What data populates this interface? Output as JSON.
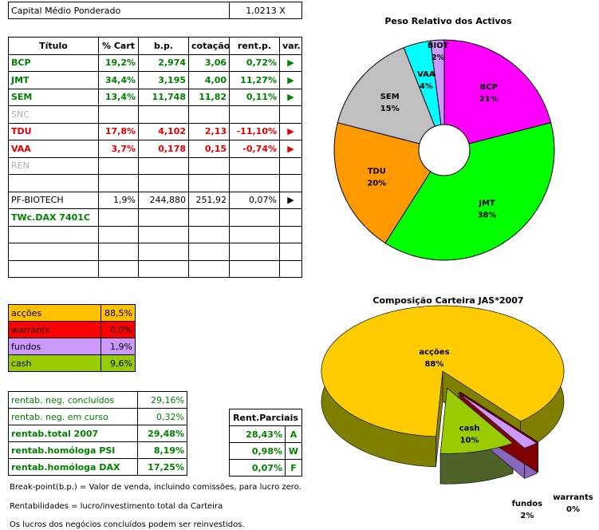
{
  "header": {
    "label": "Capital Médio Ponderado",
    "value": "1,0213 X"
  },
  "positions": {
    "columns": [
      "Título",
      "% Cart",
      "b.p.",
      "cotação",
      "rent.p.",
      "var."
    ],
    "rows": [
      [
        "BCP",
        "19,2%",
        "2,974",
        "3,06",
        "0,72%",
        "▶"
      ],
      [
        "JMT",
        "34,4%",
        "3,195",
        "4,00",
        "11,27%",
        "▶"
      ],
      [
        "SEM",
        "13,4%",
        "11,748",
        "11,82",
        "0,11%",
        "▶"
      ],
      [
        "SNC"
      ],
      [
        "TDU",
        "17,8%",
        "4,102",
        "2,13",
        "-11,10%",
        "▶"
      ],
      [
        "VAA",
        "3,7%",
        "0,178",
        "0,15",
        "-0,74%",
        "▶"
      ],
      [
        "REN"
      ],
      [
        "PF-BIOTECH",
        "1,9%",
        "244,880",
        "251,92",
        "0,07%",
        "▶"
      ],
      [
        "TWc.DAX 7401C"
      ]
    ]
  },
  "allocation": [
    [
      "acções",
      "88,5%"
    ],
    [
      "warrants",
      "0,0%"
    ],
    [
      "fundos",
      "1,9%"
    ],
    [
      "cash",
      "9,6%"
    ]
  ],
  "returns": [
    [
      "rentab. neg. concluídos",
      "29,16%"
    ],
    [
      "rentab. neg. em curso",
      "0,32%"
    ],
    [
      "rentab.total 2007",
      "29,48%"
    ],
    [
      "rentab.homóloga PSI",
      "8,19%"
    ],
    [
      "rentab.homóloga DAX",
      "17,25%"
    ]
  ],
  "partials": {
    "title": "Rent.Parciais",
    "rows": [
      [
        "28,43%",
        "A"
      ],
      [
        "0,98%",
        "W"
      ],
      [
        "0,07%",
        "F"
      ]
    ]
  },
  "notes": [
    "Break-point(b.p.) = Valor de venda, incluindo comissões, para lucro zero.",
    "Rentabilidades = lucro/investimento total da Carteira",
    "Os lucros dos negócios concluídos podem ser reinvestidos."
  ],
  "chart_data": [
    {
      "type": "donut",
      "title": "Peso Relativo dos Activos",
      "categories": [
        "BCP",
        "JMT",
        "TDU",
        "SEM",
        "VAA",
        "BIOT"
      ],
      "values": [
        21,
        38,
        20,
        15,
        4,
        2
      ],
      "value_labels": [
        "21%",
        "38%",
        "20%",
        "15%",
        "4%",
        "2%"
      ],
      "colors": [
        "#ff00ff",
        "#00ff00",
        "#ff9900",
        "#c0c0c0",
        "#00ffff",
        "#cc99ff"
      ]
    },
    {
      "type": "pie3d",
      "title": "Composição Carteira JAS*2007",
      "categories": [
        "warrants",
        "fundos",
        "cash",
        "acções"
      ],
      "values": [
        0,
        2,
        10,
        88
      ],
      "value_labels": [
        "0%",
        "2%",
        "10%",
        "88%"
      ],
      "colors": [
        "#ff0000",
        "#cc99ff",
        "#99cc00",
        "#ffcc00"
      ],
      "side_colors": [
        "#800000",
        "#8866bb",
        "#4f6228",
        "#808000"
      ]
    }
  ]
}
